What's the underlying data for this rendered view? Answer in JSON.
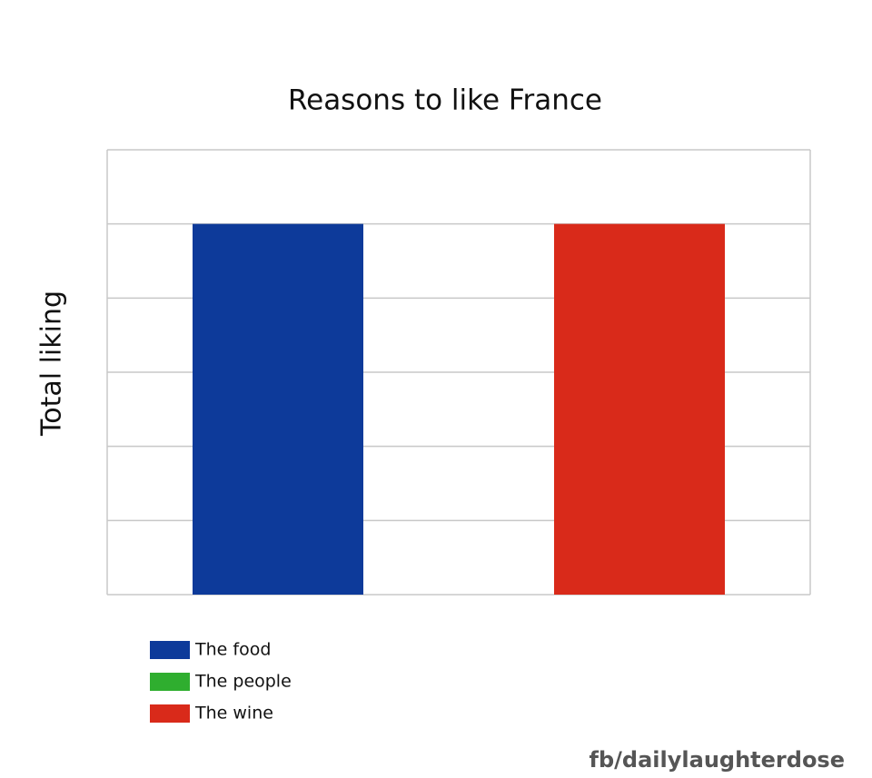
{
  "chart_data": {
    "type": "bar",
    "title": "Reasons to like France",
    "ylabel": "Total liking",
    "categories": [
      null
    ],
    "series": [
      {
        "name": "The food",
        "color": "#0d3a9a",
        "values": [
          5
        ]
      },
      {
        "name": "The people",
        "color": "#2fae2f",
        "values": [
          0
        ]
      },
      {
        "name": "The wine",
        "color": "#d92a1a",
        "values": [
          5
        ]
      }
    ],
    "ylim": [
      0,
      6
    ],
    "yticks": [
      0,
      1,
      2,
      3,
      4,
      5,
      6
    ],
    "grid": true,
    "legend": "bottom-left",
    "watermark": "fb/dailylaughterdose"
  }
}
